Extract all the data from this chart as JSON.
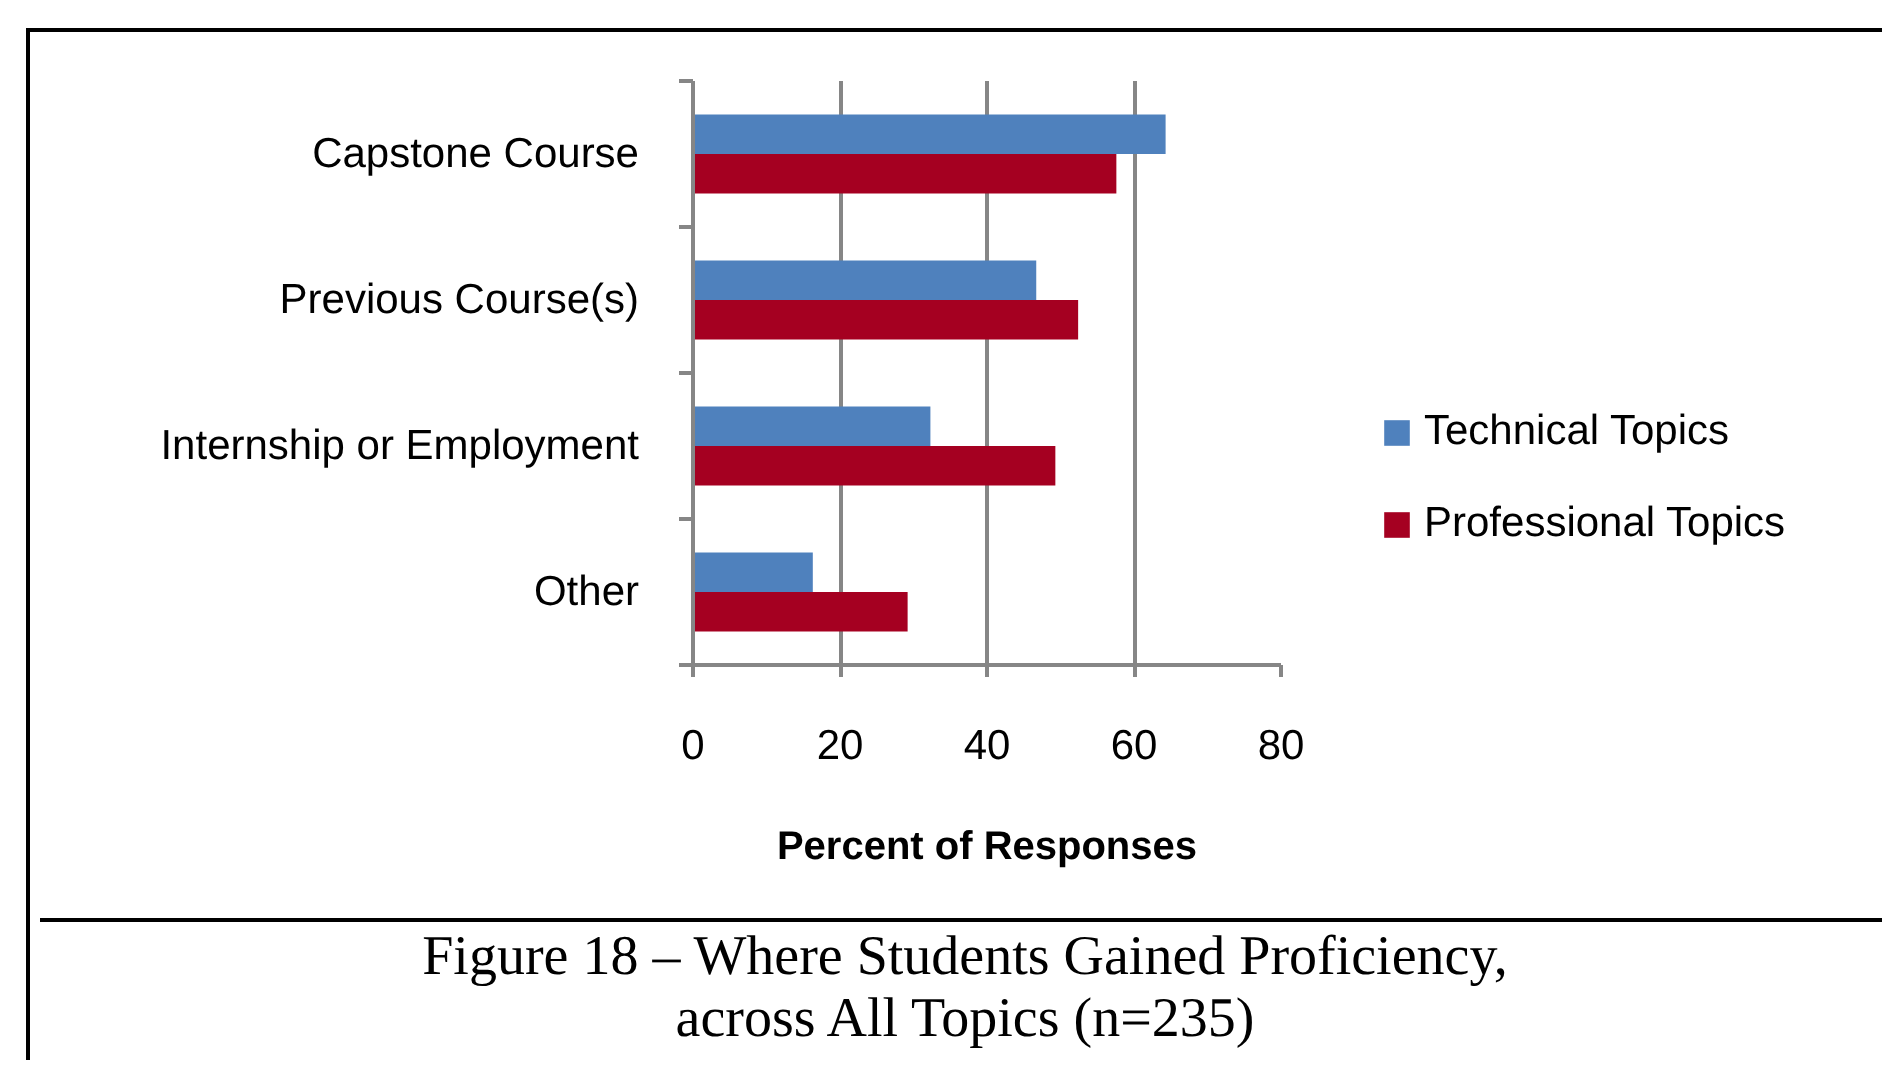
{
  "chart_data": {
    "type": "bar",
    "orientation": "horizontal",
    "categories": [
      "Capstone Course",
      "Previous Course(s)",
      "Internship or Employment",
      "Other"
    ],
    "series": [
      {
        "name": "Technical Topics",
        "color": "#4f81bd",
        "values": [
          64.3,
          46.7,
          32.3,
          16.3
        ]
      },
      {
        "name": "Professional Topics",
        "color": "#a50021",
        "values": [
          57.6,
          52.4,
          49.3,
          29.2
        ]
      }
    ],
    "xlabel": "Percent of Responses",
    "xlim": [
      0,
      80
    ],
    "xticks": [
      0,
      20,
      40,
      60,
      80
    ],
    "grid": "x",
    "legend": "right",
    "annotations": [
      "Figure 18 – Where Students Gained Proficiency, across All Topics (n=235)"
    ]
  }
}
